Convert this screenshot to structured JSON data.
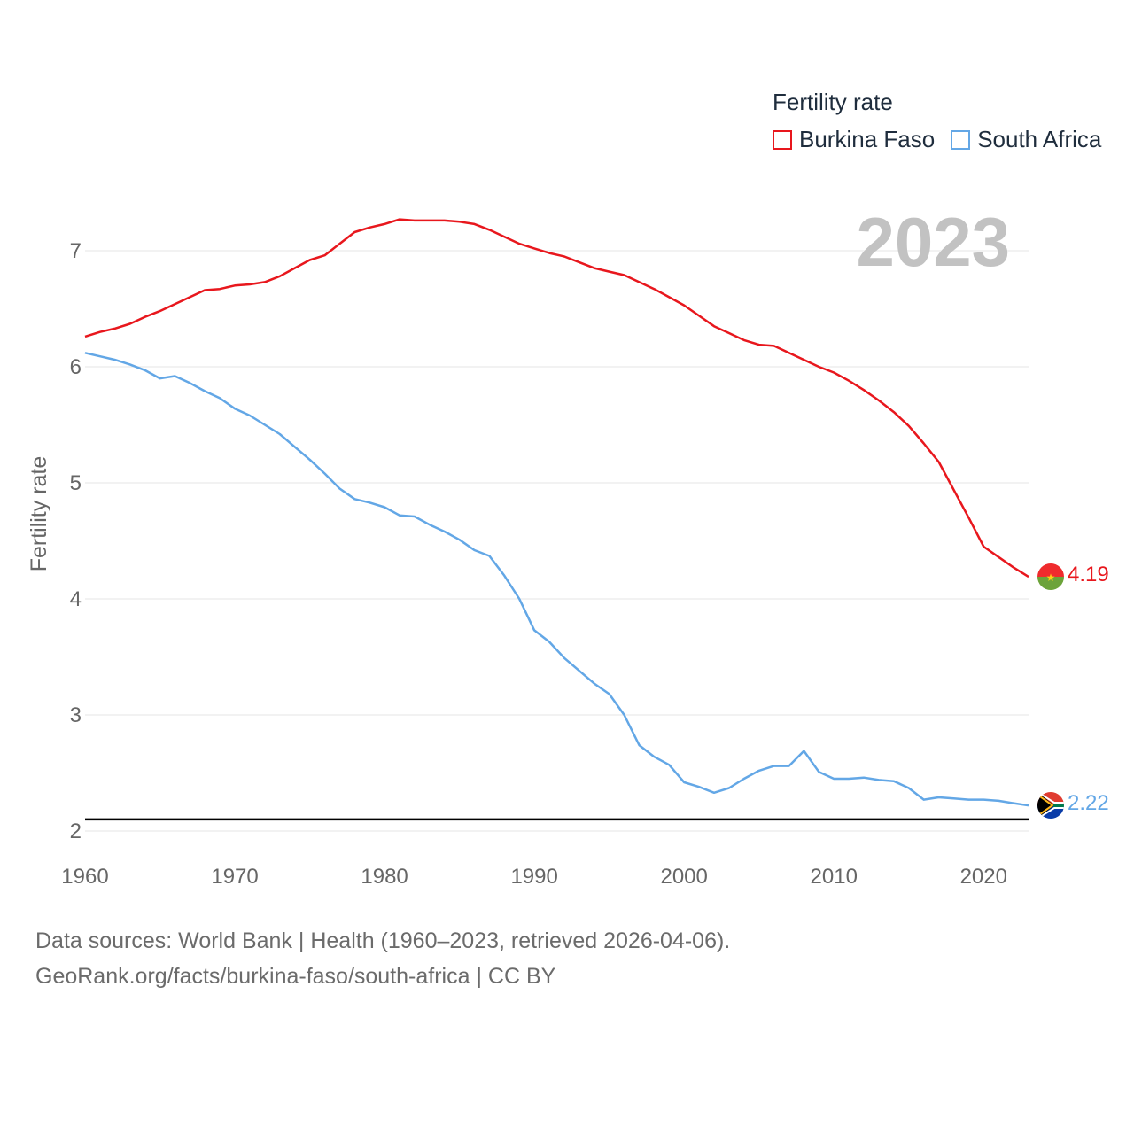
{
  "legend": {
    "title": "Fertility rate",
    "items": [
      {
        "label": "Burkina Faso",
        "color": "#e8171d"
      },
      {
        "label": "South Africa",
        "color": "#63a7e6"
      }
    ]
  },
  "year_label": "2023",
  "footer": {
    "line1": "Data sources: World Bank | Health (1960–2023, retrieved 2026-04-06).",
    "line2": "GeoRank.org/facts/burkina-faso/south-africa | CC BY"
  },
  "colors": {
    "grid": "#e6e6e6",
    "reference_line": "#000000",
    "tick_text": "#666666"
  },
  "icons": [
    "burkina-faso-flag-icon",
    "south-africa-flag-icon"
  ],
  "chart_data": {
    "type": "line",
    "title": "",
    "xlabel": "",
    "ylabel": "Fertility rate",
    "xlim": [
      1960,
      2023
    ],
    "ylim": [
      2,
      7.5
    ],
    "x_ticks": [
      1960,
      1970,
      1980,
      1990,
      2000,
      2010,
      2020
    ],
    "y_ticks": [
      2,
      3,
      4,
      5,
      6,
      7
    ],
    "reference_line": 2.1,
    "x": [
      1960,
      1961,
      1962,
      1963,
      1964,
      1965,
      1966,
      1967,
      1968,
      1969,
      1970,
      1971,
      1972,
      1973,
      1974,
      1975,
      1976,
      1977,
      1978,
      1979,
      1980,
      1981,
      1982,
      1983,
      1984,
      1985,
      1986,
      1987,
      1988,
      1989,
      1990,
      1991,
      1992,
      1993,
      1994,
      1995,
      1996,
      1997,
      1998,
      1999,
      2000,
      2001,
      2002,
      2003,
      2004,
      2005,
      2006,
      2007,
      2008,
      2009,
      2010,
      2011,
      2012,
      2013,
      2014,
      2015,
      2016,
      2017,
      2018,
      2019,
      2020,
      2021,
      2022,
      2023
    ],
    "series": [
      {
        "name": "Burkina Faso",
        "color": "#e8171d",
        "end_label": "4.19",
        "values": [
          6.26,
          6.3,
          6.33,
          6.37,
          6.43,
          6.48,
          6.54,
          6.6,
          6.66,
          6.67,
          6.7,
          6.71,
          6.73,
          6.78,
          6.85,
          6.92,
          6.96,
          7.06,
          7.16,
          7.2,
          7.23,
          7.27,
          7.26,
          7.26,
          7.26,
          7.25,
          7.23,
          7.18,
          7.12,
          7.06,
          7.02,
          6.98,
          6.95,
          6.9,
          6.85,
          6.82,
          6.79,
          6.73,
          6.67,
          6.6,
          6.53,
          6.44,
          6.35,
          6.29,
          6.23,
          6.19,
          6.18,
          6.12,
          6.06,
          6.0,
          5.95,
          5.88,
          5.8,
          5.71,
          5.61,
          5.49,
          5.34,
          5.18,
          4.94,
          4.7,
          4.45,
          4.36,
          4.27,
          4.19
        ]
      },
      {
        "name": "South Africa",
        "color": "#63a7e6",
        "end_label": "2.22",
        "values": [
          6.12,
          6.09,
          6.06,
          6.02,
          5.97,
          5.9,
          5.92,
          5.86,
          5.79,
          5.73,
          5.64,
          5.58,
          5.5,
          5.42,
          5.31,
          5.2,
          5.08,
          4.95,
          4.86,
          4.83,
          4.79,
          4.72,
          4.71,
          4.64,
          4.58,
          4.51,
          4.42,
          4.37,
          4.2,
          4.0,
          3.73,
          3.63,
          3.49,
          3.38,
          3.27,
          3.18,
          3.0,
          2.74,
          2.64,
          2.57,
          2.42,
          2.38,
          2.33,
          2.37,
          2.45,
          2.52,
          2.56,
          2.56,
          2.69,
          2.51,
          2.45,
          2.45,
          2.46,
          2.44,
          2.43,
          2.37,
          2.27,
          2.29,
          2.28,
          2.27,
          2.27,
          2.26,
          2.24,
          2.22
        ]
      }
    ]
  }
}
